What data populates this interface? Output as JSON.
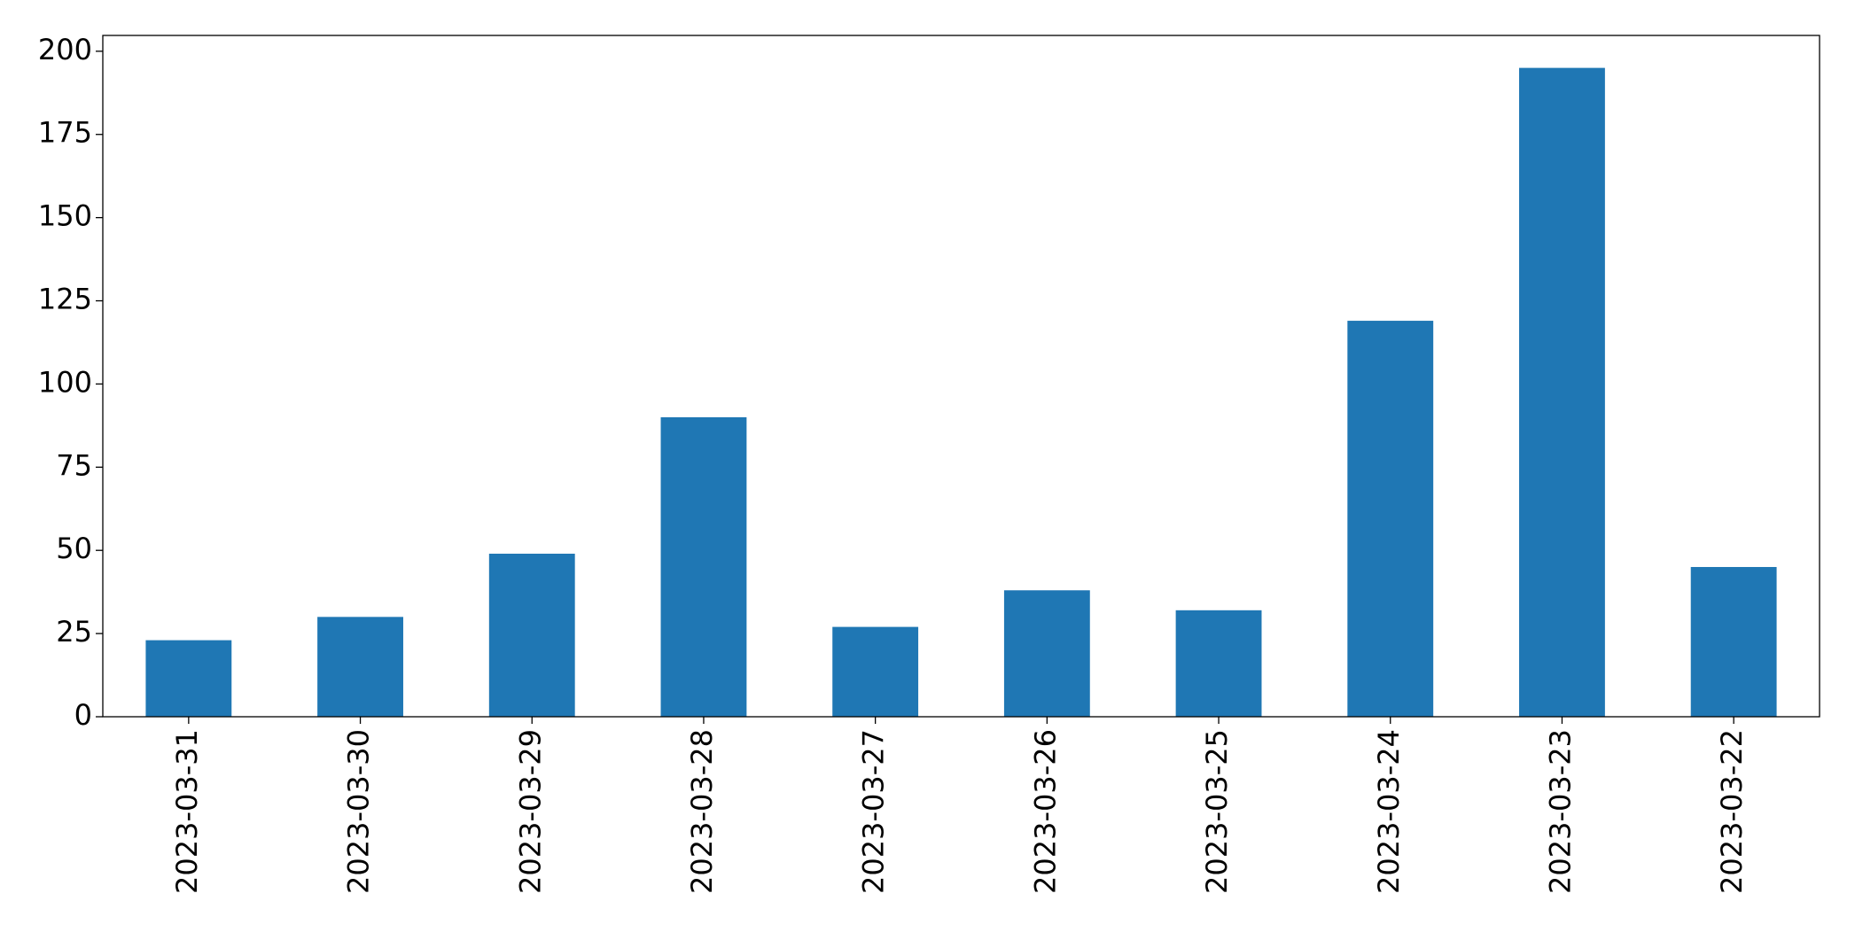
{
  "chart_data": {
    "type": "bar",
    "categories": [
      "2023-03-31",
      "2023-03-30",
      "2023-03-29",
      "2023-03-28",
      "2023-03-27",
      "2023-03-26",
      "2023-03-25",
      "2023-03-24",
      "2023-03-23",
      "2023-03-22"
    ],
    "values": [
      23,
      30,
      49,
      90,
      27,
      38,
      32,
      119,
      195,
      45
    ],
    "color": "#1f77b4",
    "ylim": [
      0,
      204.75
    ],
    "yticks": [
      0,
      25,
      50,
      75,
      100,
      125,
      150,
      175,
      200
    ],
    "grid": false
  }
}
